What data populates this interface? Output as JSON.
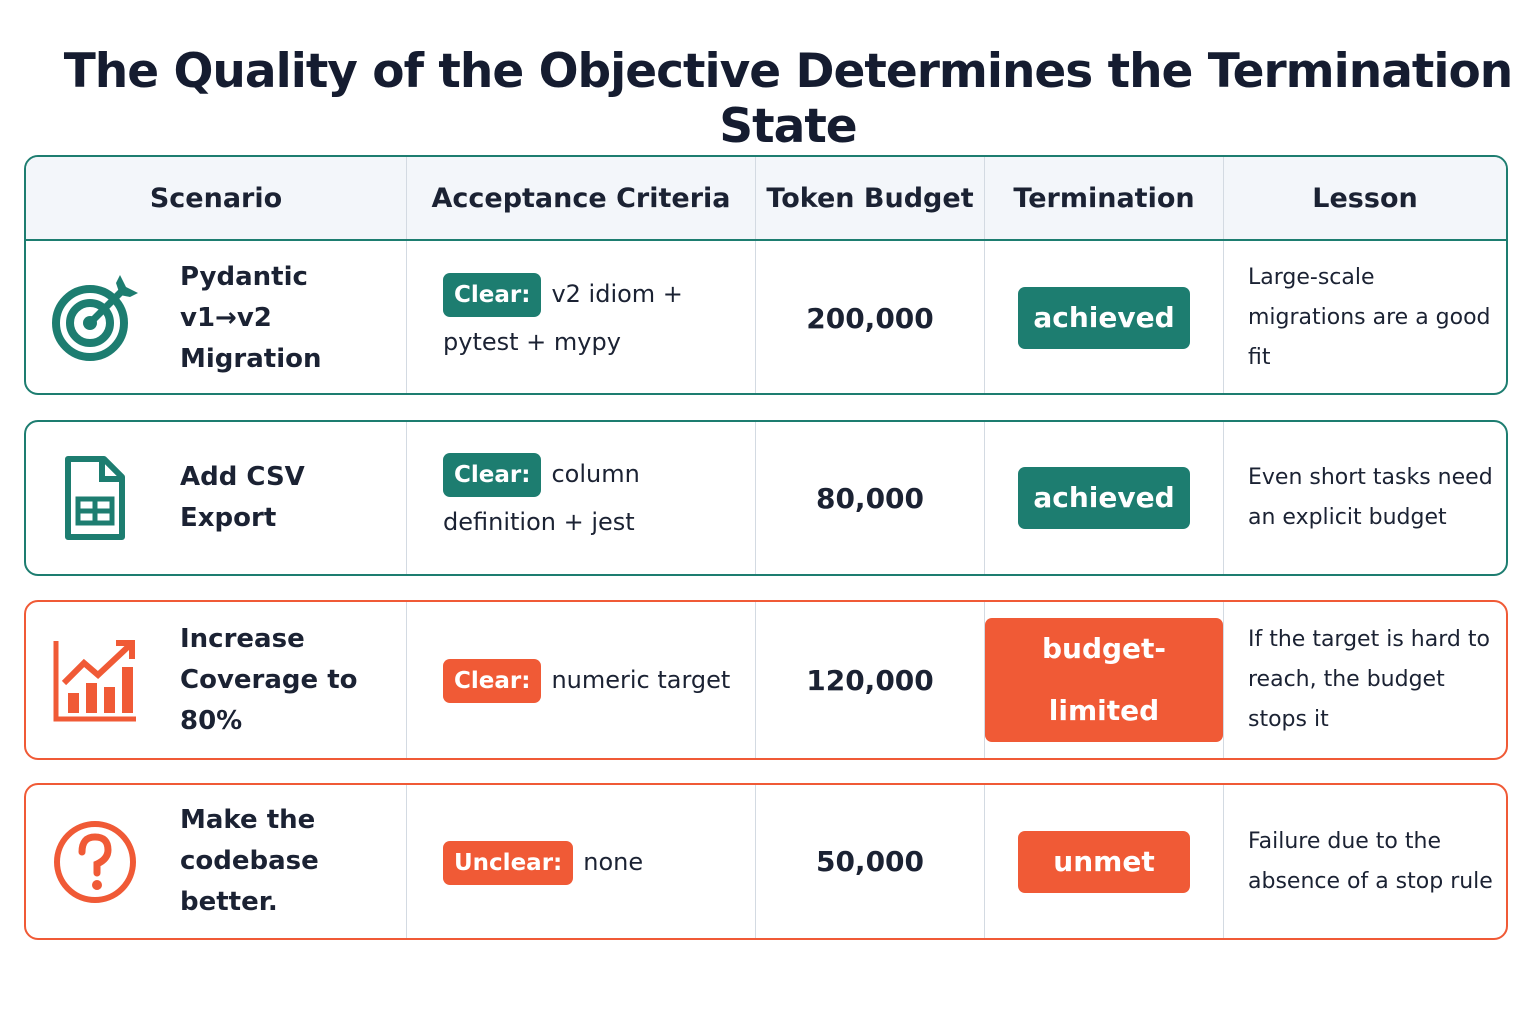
{
  "title": "The Quality of the Objective Determines the Termination State",
  "table": {
    "columns": [
      "Scenario",
      "Acceptance Criteria",
      "Token Budget",
      "Termination",
      "Lesson"
    ],
    "rows": [
      {
        "scenario": "Pydantic v1→v2 Migration",
        "criteria_tag": "Clear:",
        "criteria": "v2 idiom + pytest + mypy",
        "budget": "200,000",
        "termination": "achieved",
        "lesson": "Large-scale migrations are a good fit"
      },
      {
        "scenario": "Add CSV Export",
        "criteria_tag": "Clear:",
        "criteria": "column definition + jest",
        "budget": "80,000",
        "termination": "achieved",
        "lesson": "Even short tasks need an explicit budget"
      },
      {
        "scenario": "Increase Coverage to 80%",
        "criteria_tag": "Clear:",
        "criteria": "numeric target",
        "budget": "120,000",
        "termination": "budget-limited",
        "lesson": "If the target is hard to reach, the budget stops it"
      },
      {
        "scenario": "Make the codebase better.",
        "criteria_tag": "Unclear:",
        "criteria": "none",
        "budget": "50,000",
        "termination": "unmet",
        "lesson": "Failure due to the absence of a stop rule"
      }
    ]
  }
}
